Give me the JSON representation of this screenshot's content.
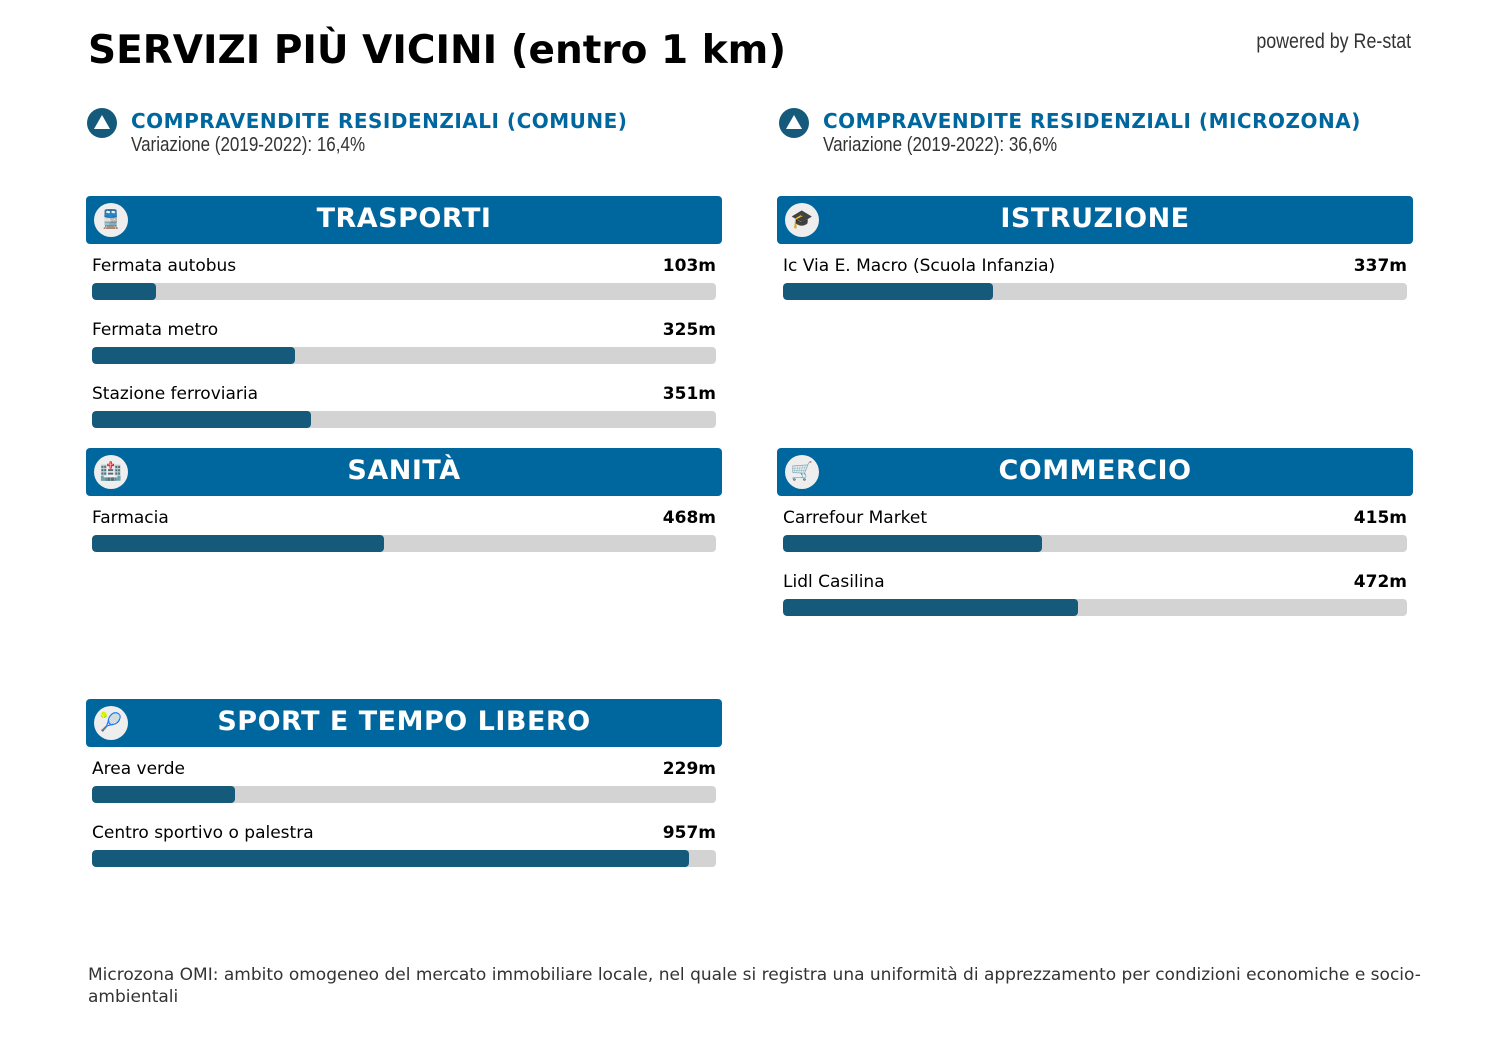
{
  "title": "SERVIZI PIÙ VICINI (entro 1 km)",
  "powered": "powered by Re-stat",
  "kpis": [
    {
      "title": "COMPRAVENDITE RESIDENZIALI (COMUNE)",
      "value": "Variazione (2019-2022): 16,4%",
      "icon": "triangle-up-icon"
    },
    {
      "title": "COMPRAVENDITE RESIDENZIALI (MICROZONA)",
      "value": "Variazione (2019-2022): 36,6%",
      "icon": "triangle-up-icon"
    }
  ],
  "sections": [
    {
      "title": "TRASPORTI",
      "icon": "train-icon",
      "items": [
        {
          "label": "Fermata autobus",
          "value": "103m",
          "meters": 103
        },
        {
          "label": "Fermata metro",
          "value": "325m",
          "meters": 325
        },
        {
          "label": "Stazione ferroviaria",
          "value": "351m",
          "meters": 351
        }
      ]
    },
    {
      "title": "ISTRUZIONE",
      "icon": "student-icon",
      "items": [
        {
          "label": "Ic Via E. Macro (Scuola Infanzia)",
          "value": "337m",
          "meters": 337
        }
      ]
    },
    {
      "title": "SANITÀ",
      "icon": "hospital-icon",
      "items": [
        {
          "label": "Farmacia",
          "value": "468m",
          "meters": 468
        }
      ]
    },
    {
      "title": "COMMERCIO",
      "icon": "cart-icon",
      "items": [
        {
          "label": "Carrefour Market",
          "value": "415m",
          "meters": 415
        },
        {
          "label": "Lidl Casilina",
          "value": "472m",
          "meters": 472
        }
      ]
    },
    {
      "title": "SPORT E TEMPO LIBERO",
      "icon": "tennis-racket-icon",
      "items": [
        {
          "label": "Area verde",
          "value": "229m",
          "meters": 229
        },
        {
          "label": "Centro sportivo o palestra",
          "value": "957m",
          "meters": 957
        }
      ]
    }
  ],
  "bar_max_meters": 1000,
  "footer": "Microzona OMI: ambito omogeneo del mercato immobiliare locale, nel quale si registra una uniformità di apprezzamento per condizioni economiche e socio-ambientali",
  "colors": {
    "header": "#00679e",
    "fill": "#155a7a",
    "track": "#d3d3d3"
  }
}
